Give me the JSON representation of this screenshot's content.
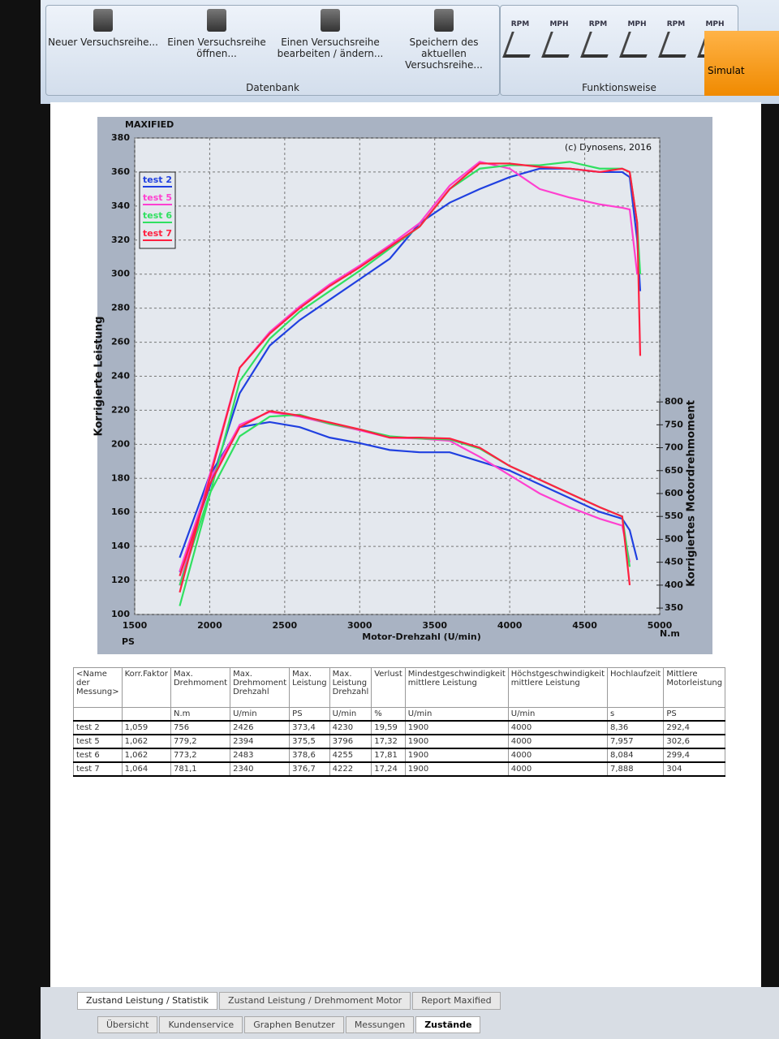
{
  "toolbar": {
    "database_buttons": [
      "Neuer Versuchsreihe...",
      "Einen Versuchsreihe öffnen...",
      "Einen Versuchsreihe bearbeiten / ändern...",
      "Speichern des aktuellen Versuchsreihe..."
    ],
    "database_group": "Datenbank",
    "mode_labels": [
      "RPM",
      "MPH",
      "RPM",
      "MPH",
      "RPM",
      "MPH"
    ],
    "mode_group": "Funktionsweise",
    "simulation_button": "Simulat"
  },
  "chart_data": {
    "type": "line",
    "title": "MAXIFIED",
    "copyright": "(c) Dynosens, 2016",
    "x_label": "Motor-Drehzahl (U/min)",
    "y_label": "Korrigierte Leistung",
    "y2_label": "Korrigiertes Motordrehmoment",
    "y_unit": "PS",
    "y2_unit": "N.m",
    "xlim": [
      1500,
      5000
    ],
    "xticks": [
      1500,
      2000,
      2500,
      3000,
      3500,
      4000,
      4500,
      5000
    ],
    "ylim": [
      100,
      380
    ],
    "yticks": [
      100,
      120,
      140,
      160,
      180,
      200,
      220,
      240,
      260,
      280,
      300,
      320,
      340,
      360,
      380
    ],
    "y2lim": [
      336,
      1376
    ],
    "y2ticks": [
      350,
      400,
      450,
      500,
      550,
      600,
      650,
      700,
      750,
      800
    ],
    "grid": true,
    "legend": "top-left",
    "x": [
      1800,
      2000,
      2200,
      2400,
      2600,
      2800,
      3000,
      3200,
      3400,
      3600,
      3800,
      4000,
      4200,
      4400,
      4600,
      4750,
      4800,
      4850,
      4870
    ],
    "series": [
      {
        "name": "test 2",
        "color": "#2040e0",
        "values": [
          125,
          175,
          230,
          258,
          273,
          285,
          297,
          309,
          330,
          342,
          350,
          357,
          362,
          362,
          360,
          360,
          357,
          320,
          290
        ],
        "torque": [
          460,
          640,
          745,
          756,
          745,
          722,
          710,
          695,
          690,
          690,
          670,
          650,
          620,
          590,
          560,
          545,
          520,
          455,
          null
        ]
      },
      {
        "name": "test 5",
        "color": "#ff40d0",
        "values": [
          117,
          182,
          245,
          266,
          281,
          294,
          305,
          317,
          330,
          352,
          366,
          362,
          350,
          345,
          341,
          339,
          338,
          300,
          null
        ],
        "torque": [
          430,
          630,
          750,
          778,
          768,
          752,
          738,
          722,
          720,
          715,
          680,
          640,
          600,
          570,
          545,
          530,
          450,
          null,
          null
        ]
      },
      {
        "name": "test 6",
        "color": "#30e060",
        "values": [
          105,
          170,
          237,
          262,
          278,
          290,
          302,
          315,
          328,
          350,
          362,
          364,
          364,
          366,
          362,
          362,
          360,
          330,
          300
        ],
        "torque": [
          400,
          600,
          725,
          768,
          772,
          752,
          740,
          725,
          720,
          718,
          698,
          660,
          630,
          600,
          570,
          550,
          440,
          null,
          null
        ]
      },
      {
        "name": "test 7",
        "color": "#ff2040",
        "values": [
          113,
          180,
          245,
          265,
          280,
          293,
          304,
          316,
          328,
          350,
          365,
          365,
          363,
          362,
          360,
          362,
          360,
          330,
          252
        ],
        "torque": [
          420,
          620,
          745,
          780,
          770,
          755,
          740,
          722,
          722,
          720,
          700,
          660,
          630,
          600,
          570,
          550,
          400,
          null,
          null
        ]
      }
    ]
  },
  "table": {
    "headers": [
      "<Name der Messung>",
      "Korr.Faktor",
      "Max. Drehmoment",
      "Max. Drehmoment Drehzahl",
      "Max. Leistung",
      "Max. Leistung Drehzahl",
      "Verlust",
      "Mindestgeschwindigkeit mittlere Leistung",
      "Höchstgeschwindigkeit mittlere Leistung",
      "Hochlaufzeit",
      "Mittlere Motorleistung"
    ],
    "units": [
      "",
      "",
      "N.m",
      "U/min",
      "PS",
      "U/min",
      "%",
      "U/min",
      "U/min",
      "s",
      "PS"
    ],
    "rows": [
      [
        "test 2",
        "1,059",
        "756",
        "2426",
        "373,4",
        "4230",
        "19,59",
        "1900",
        "4000",
        "8,36",
        "292,4"
      ],
      [
        "test 5",
        "1,062",
        "779,2",
        "2394",
        "375,5",
        "3796",
        "17,32",
        "1900",
        "4000",
        "7,957",
        "302,6"
      ],
      [
        "test 6",
        "1,062",
        "773,2",
        "2483",
        "378,6",
        "4255",
        "17,81",
        "1900",
        "4000",
        "8,084",
        "299,4"
      ],
      [
        "test 7",
        "1,064",
        "781,1",
        "2340",
        "376,7",
        "4222",
        "17,24",
        "1900",
        "4000",
        "7,888",
        "304"
      ]
    ]
  },
  "report_tabs": [
    "Zustand Leistung / Statistik",
    "Zustand Leistung / Drehmoment Motor",
    "Report Maxified"
  ],
  "bottom_tabs": [
    "Übersicht",
    "Kundenservice",
    "Graphen Benutzer",
    "Messungen",
    "Zustände"
  ]
}
